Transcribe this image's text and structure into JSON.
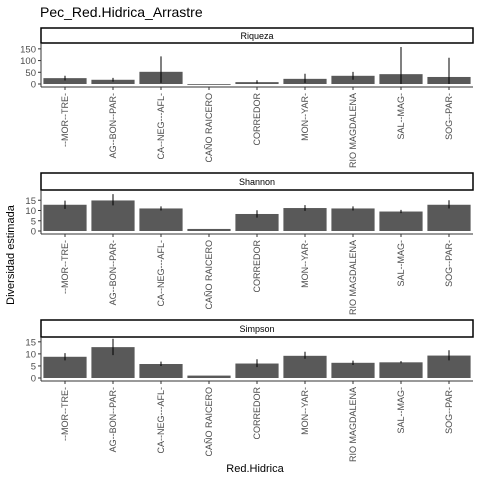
{
  "chart_data": {
    "type": "bar",
    "title": "Pec_Red.Hidrica_Arrastre",
    "xlabel": "Red.Hidrica",
    "ylabel": "Diversidad estimada",
    "categories": [
      "--MOR--TRE-",
      "AG--BON--PAR-",
      "CA--NEG---AFL-",
      "CAÑO RAICERO",
      "CORREDOR",
      "MON--YAR-",
      "RIO MAGDALENA",
      "SAL--MAG-",
      "SOG--PAR-"
    ],
    "facets": [
      {
        "name": "Riqueza",
        "ylim": [
          0,
          175
        ],
        "yticks": [
          0,
          50,
          100,
          150
        ],
        "values": [
          25,
          18,
          52,
          0,
          8,
          22,
          35,
          42,
          30
        ],
        "error": [
          [
            15,
            35
          ],
          [
            10,
            26
          ],
          [
            5,
            118
          ],
          [
            0,
            0
          ],
          [
            2,
            16
          ],
          [
            5,
            44
          ],
          [
            18,
            52
          ],
          [
            0,
            158
          ],
          [
            0,
            112
          ]
        ]
      },
      {
        "name": "Shannon",
        "ylim": [
          0,
          20
        ],
        "yticks": [
          0,
          5,
          10,
          15
        ],
        "values": [
          12.8,
          14.9,
          11.0,
          1.0,
          8.3,
          11.2,
          11.0,
          9.5,
          12.8
        ],
        "error": [
          [
            10.8,
            14.8
          ],
          [
            12.5,
            18.0
          ],
          [
            10.0,
            12.0
          ],
          [
            1.0,
            1.0
          ],
          [
            6.5,
            10.1
          ],
          [
            9.8,
            12.6
          ],
          [
            10.0,
            12.0
          ],
          [
            8.7,
            10.3
          ],
          [
            11.0,
            15.0
          ]
        ]
      },
      {
        "name": "Simpson",
        "ylim": [
          0,
          17
        ],
        "yticks": [
          0,
          5,
          10,
          15
        ],
        "values": [
          8.8,
          12.8,
          5.8,
          1.0,
          6.0,
          9.2,
          6.3,
          6.5,
          9.3
        ],
        "error": [
          [
            7.3,
            10.3
          ],
          [
            9.5,
            16.3
          ],
          [
            5.0,
            6.8
          ],
          [
            1.0,
            1.0
          ],
          [
            4.5,
            7.8
          ],
          [
            8.0,
            10.9
          ],
          [
            5.4,
            7.2
          ],
          [
            6.1,
            7.0
          ],
          [
            7.3,
            11.5
          ]
        ]
      }
    ],
    "grid": false,
    "legend": "none",
    "colors": {
      "bar": "#595959",
      "errorbar": "#000000",
      "strip_fill": "#ffffff",
      "strip_border": "#000000",
      "axis": "#333333",
      "text": "#000000"
    }
  }
}
